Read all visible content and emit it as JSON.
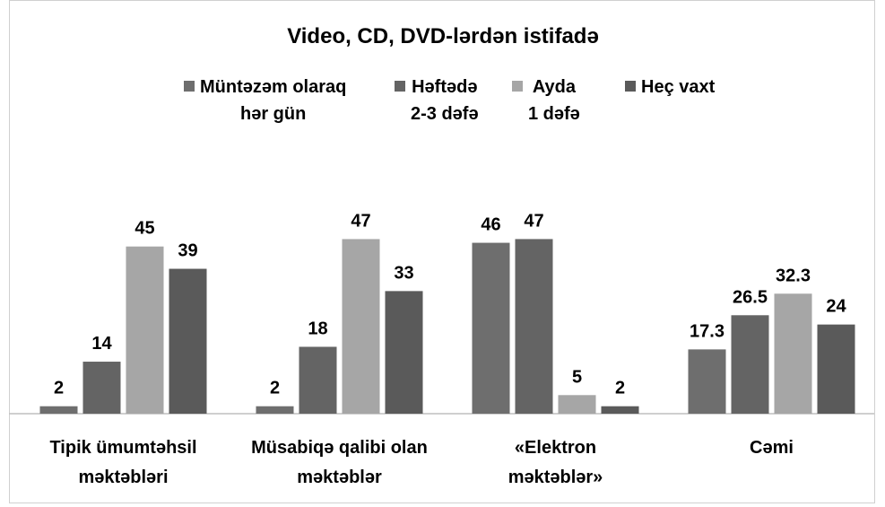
{
  "chart_data": {
    "type": "bar",
    "title": "Video, CD, DVD-lərdən istifadə",
    "categories": [
      "Tipik ümumtəhsil\nməktəbləri",
      "Müsabiqə qalibi olan\nməktəblər",
      "«Elektron\nməktəblər»",
      "Cəmi"
    ],
    "series": [
      {
        "name": "Müntəzəm olaraq\nhər gün",
        "color": "#6e6e6e",
        "values": [
          2,
          2,
          46,
          17.3
        ]
      },
      {
        "name": "Həftədə\n2-3 dəfə",
        "color": "#646464",
        "values": [
          14,
          18,
          47,
          26.5
        ]
      },
      {
        "name": "Ayda\n1 dəfə",
        "color": "#a6a6a6",
        "values": [
          45,
          47,
          5,
          32.3
        ]
      },
      {
        "name": "Heç vaxt",
        "color": "#5a5a5a",
        "values": [
          39,
          33,
          2,
          24
        ]
      }
    ],
    "ylim": [
      0,
      50
    ],
    "legend": "top"
  }
}
